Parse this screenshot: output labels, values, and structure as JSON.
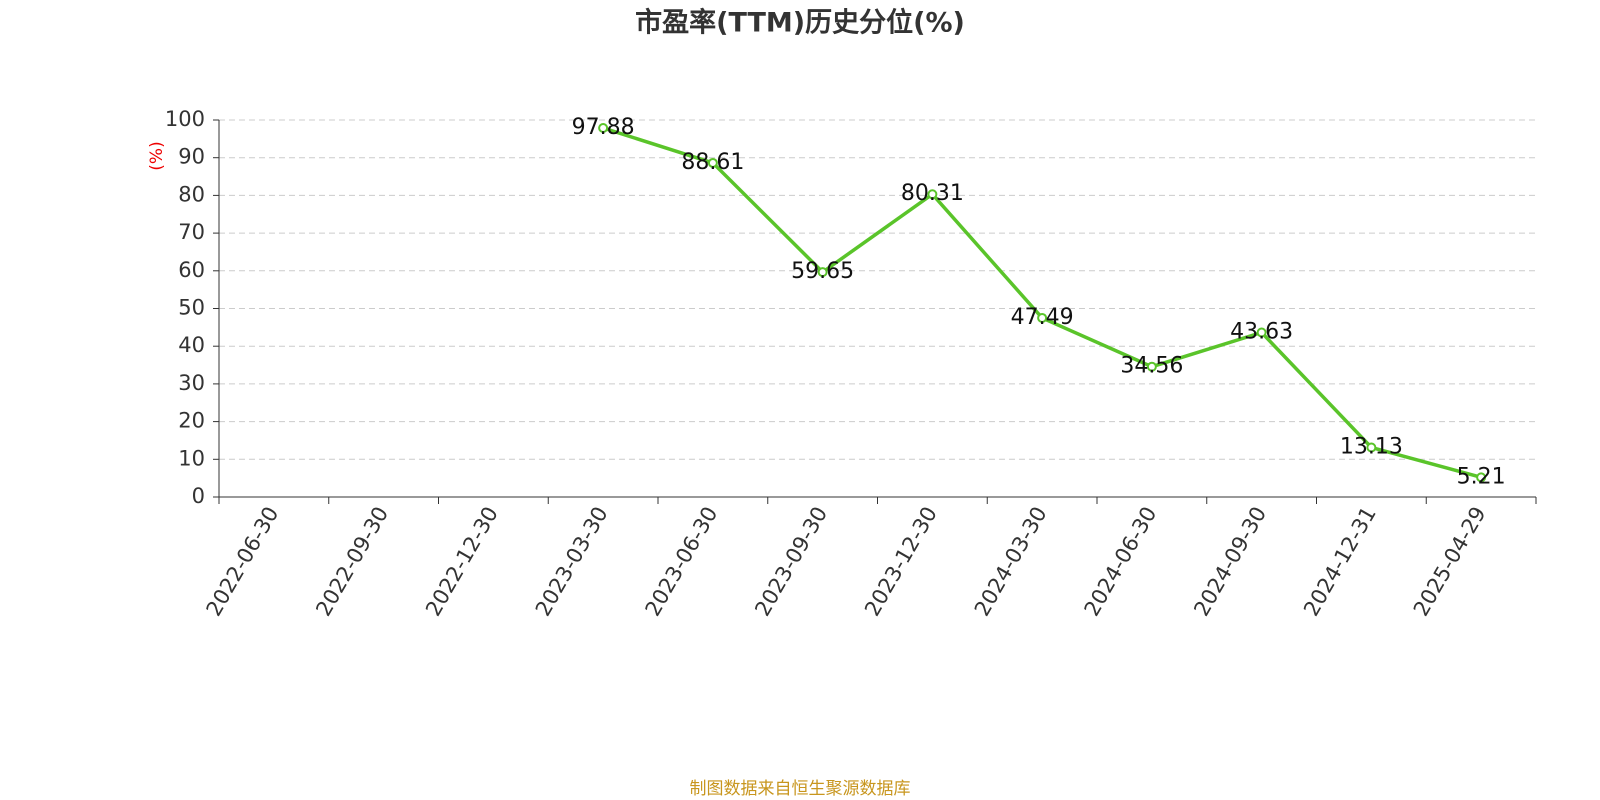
{
  "chart_data": {
    "type": "line",
    "title": "市盈率(TTM)历史分位(%)",
    "y_label": "(%)",
    "source": "制图数据来自恒生聚源数据库",
    "categories": [
      "2022-06-30",
      "2022-09-30",
      "2022-12-30",
      "2023-03-30",
      "2023-06-30",
      "2023-09-30",
      "2023-12-30",
      "2024-03-30",
      "2024-06-30",
      "2024-09-30",
      "2024-12-31",
      "2025-04-29"
    ],
    "series": [
      {
        "name": "市盈率(TTM)历史分位",
        "color": "#5ac42a",
        "values": [
          null,
          null,
          null,
          97.88,
          88.61,
          59.65,
          80.31,
          47.49,
          34.56,
          43.63,
          13.13,
          5.21
        ]
      }
    ],
    "ylim": [
      0,
      100
    ],
    "yticks": [
      0,
      10,
      20,
      30,
      40,
      50,
      60,
      70,
      80,
      90,
      100
    ],
    "grid": true
  }
}
